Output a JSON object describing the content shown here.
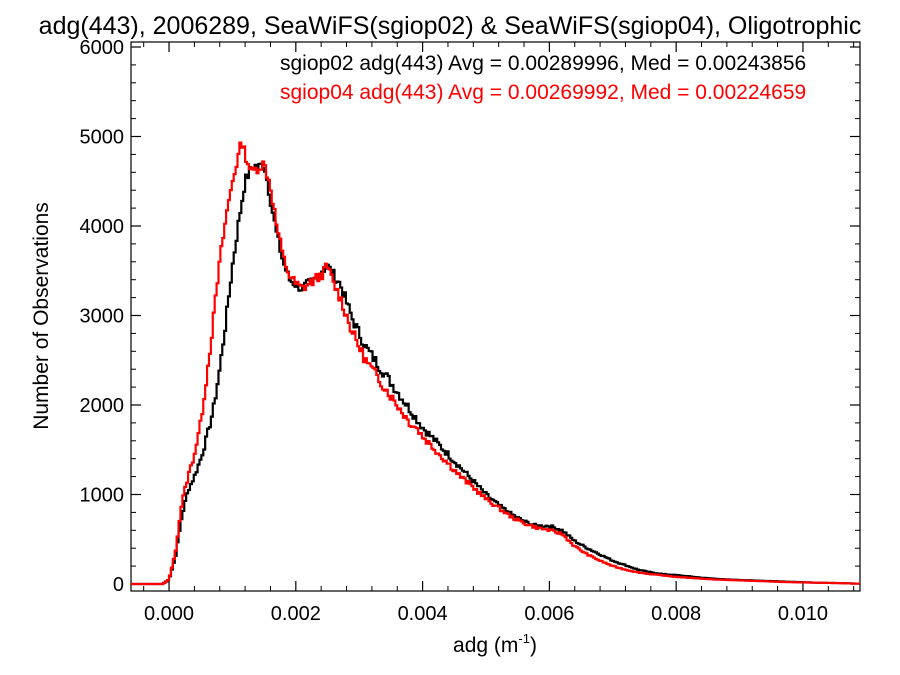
{
  "chart_data": {
    "type": "line",
    "title": "adg(443), 2006289, SeaWiFS(sgiop02) & SeaWiFS(sgiop04), Oligotrophic",
    "xlabel": "adg (m",
    "xlabel_sup": "-1",
    "xlabel_close": ")",
    "ylabel": "Number of Observations",
    "xlim": [
      -0.0006,
      0.0109
    ],
    "ylim": [
      0,
      6000
    ],
    "xticks": [
      0.0,
      0.002,
      0.004,
      0.006,
      0.008,
      0.01
    ],
    "xtick_labels": [
      "0.000",
      "0.002",
      "0.004",
      "0.006",
      "0.008",
      "0.010"
    ],
    "yticks": [
      0,
      1000,
      2000,
      3000,
      4000,
      5000,
      6000
    ],
    "ytick_labels": [
      "0",
      "1000",
      "2000",
      "3000",
      "4000",
      "5000",
      "6000"
    ],
    "step_style": "histogram",
    "grid": false,
    "series": [
      {
        "name": "sgiop02 adg(443) Avg = 0.00289996, Med = 0.00243856",
        "color": "#000000",
        "x": [
          -0.0005,
          -0.0003,
          -0.0001,
          0.0,
          0.0001,
          0.0002,
          0.0003,
          0.0004,
          0.0005,
          0.0006,
          0.0007,
          0.0008,
          0.0009,
          0.001,
          0.0011,
          0.0012,
          0.0013,
          0.00135,
          0.0014,
          0.0015,
          0.0016,
          0.0017,
          0.0018,
          0.0019,
          0.002,
          0.0021,
          0.0022,
          0.0023,
          0.0024,
          0.0025,
          0.0026,
          0.0027,
          0.0028,
          0.0029,
          0.003,
          0.0031,
          0.0032,
          0.0033,
          0.0034,
          0.0035,
          0.0036,
          0.0037,
          0.0038,
          0.0039,
          0.004,
          0.0042,
          0.0044,
          0.0046,
          0.0048,
          0.005,
          0.0052,
          0.0054,
          0.0056,
          0.0058,
          0.006,
          0.0062,
          0.0064,
          0.0066,
          0.0068,
          0.007,
          0.0072,
          0.0074,
          0.0076,
          0.0078,
          0.008,
          0.0082,
          0.0084,
          0.0086,
          0.0088,
          0.009,
          0.0092,
          0.0094,
          0.0096,
          0.0098,
          0.01,
          0.0102,
          0.0104,
          0.0106,
          0.0108
        ],
        "y": [
          0,
          0,
          0,
          50,
          300,
          750,
          1050,
          1200,
          1400,
          1650,
          1950,
          2400,
          2950,
          3550,
          4050,
          4500,
          4650,
          4680,
          4650,
          4700,
          4300,
          3900,
          3600,
          3400,
          3350,
          3300,
          3350,
          3400,
          3500,
          3550,
          3450,
          3350,
          3150,
          2950,
          2800,
          2650,
          2550,
          2450,
          2350,
          2250,
          2150,
          2050,
          1950,
          1850,
          1750,
          1600,
          1450,
          1300,
          1150,
          1000,
          880,
          780,
          700,
          650,
          650,
          600,
          480,
          400,
          330,
          260,
          210,
          160,
          130,
          110,
          100,
          85,
          70,
          60,
          50,
          45,
          40,
          35,
          30,
          25,
          20,
          15,
          12,
          10,
          5
        ]
      },
      {
        "name": "sgiop04 adg(443) Avg = 0.00269992, Med = 0.00224659",
        "color": "#ff0000",
        "x": [
          -0.0005,
          -0.0003,
          -0.0001,
          0.0,
          0.0001,
          0.0002,
          0.0003,
          0.0004,
          0.0005,
          0.0006,
          0.0007,
          0.0008,
          0.0009,
          0.001,
          0.0011,
          0.00115,
          0.0012,
          0.0013,
          0.0014,
          0.0015,
          0.0016,
          0.0017,
          0.0018,
          0.0019,
          0.002,
          0.0021,
          0.0022,
          0.0023,
          0.0024,
          0.0025,
          0.0026,
          0.0027,
          0.0028,
          0.0029,
          0.003,
          0.0031,
          0.0032,
          0.0033,
          0.0034,
          0.0035,
          0.0036,
          0.0037,
          0.0038,
          0.0039,
          0.004,
          0.0042,
          0.0044,
          0.0046,
          0.0048,
          0.005,
          0.0052,
          0.0054,
          0.0056,
          0.0058,
          0.006,
          0.0062,
          0.0064,
          0.0066,
          0.0068,
          0.007,
          0.0072,
          0.0074,
          0.0076,
          0.0078,
          0.008,
          0.0082,
          0.0084,
          0.0086,
          0.0088,
          0.009,
          0.0092,
          0.0094,
          0.0096,
          0.0098,
          0.01,
          0.0102,
          0.0104,
          0.0106,
          0.0108
        ],
        "y": [
          0,
          0,
          0,
          50,
          350,
          900,
          1200,
          1450,
          1800,
          2350,
          2950,
          3600,
          4100,
          4500,
          4800,
          4950,
          4800,
          4600,
          4650,
          4700,
          4450,
          4000,
          3650,
          3450,
          3350,
          3300,
          3350,
          3400,
          3450,
          3550,
          3350,
          3200,
          3000,
          2800,
          2650,
          2500,
          2400,
          2300,
          2200,
          2100,
          2000,
          1900,
          1800,
          1750,
          1650,
          1500,
          1350,
          1200,
          1080,
          950,
          850,
          750,
          680,
          630,
          600,
          560,
          420,
          330,
          260,
          200,
          160,
          130,
          110,
          95,
          80,
          70,
          60,
          50,
          45,
          40,
          35,
          30,
          25,
          20,
          18,
          15,
          12,
          10,
          5
        ]
      }
    ]
  }
}
